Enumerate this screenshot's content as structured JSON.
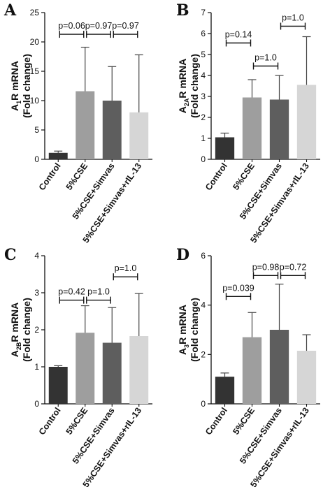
{
  "chart_data": [
    {
      "type": "bar",
      "panel": "A",
      "ylabel_main": "A",
      "ylabel_sub": "1",
      "ylabel_rest": "R mRNA",
      "ylabel_line2": "(Fold change)",
      "categories": [
        "Control",
        "5%CSE",
        "5%CSE+Simvas",
        "5%CSE+Simvas+rIL-13"
      ],
      "values": [
        1.1,
        11.6,
        10.0,
        8.0
      ],
      "errors": [
        0.3,
        7.5,
        5.8,
        9.8
      ],
      "colors": [
        "#333333",
        "#9e9e9e",
        "#5e5e5e",
        "#d6d6d6"
      ],
      "ylim": [
        0,
        25
      ],
      "yticks": [
        0,
        5,
        10,
        15,
        20,
        25
      ],
      "comparisons": [
        {
          "from": 0,
          "to": 1,
          "label": "p=0.06",
          "y": 21.3
        },
        {
          "from": 1,
          "to": 2,
          "label": "p=0.97",
          "y": 21.3
        },
        {
          "from": 2,
          "to": 3,
          "label": "p=0.97",
          "y": 21.3
        }
      ]
    },
    {
      "type": "bar",
      "panel": "B",
      "ylabel_main": "A",
      "ylabel_sub": "2A",
      "ylabel_rest": "R mRNA",
      "ylabel_line2": "(Fold change)",
      "categories": [
        "Control",
        "5%CSE",
        "5%CSE+Simvas",
        "5%CSE+Simvas+rIL-13"
      ],
      "values": [
        1.05,
        2.95,
        2.85,
        3.55
      ],
      "errors": [
        0.2,
        0.85,
        1.15,
        2.3
      ],
      "colors": [
        "#333333",
        "#9e9e9e",
        "#5e5e5e",
        "#d6d6d6"
      ],
      "ylim": [
        0,
        7
      ],
      "yticks": [
        0,
        1,
        2,
        3,
        4,
        5,
        6,
        7
      ],
      "comparisons": [
        {
          "from": 0,
          "to": 1,
          "label": "p=0.14",
          "y": 5.55
        },
        {
          "from": 1,
          "to": 2,
          "label": "p=1.0",
          "y": 4.45
        },
        {
          "from": 2,
          "to": 3,
          "label": "p=1.0",
          "y": 6.35
        }
      ]
    },
    {
      "type": "bar",
      "panel": "C",
      "ylabel_main": "A",
      "ylabel_sub": "2B",
      "ylabel_rest": "R mRNA",
      "ylabel_line2": "(Fold change)",
      "categories": [
        "Control",
        "5%CSE",
        "5%CSE+Simvas",
        "5%CSE+Simvas+rIL-13"
      ],
      "values": [
        1.0,
        1.92,
        1.65,
        1.83
      ],
      "errors": [
        0.03,
        0.73,
        0.95,
        1.15
      ],
      "colors": [
        "#333333",
        "#9e9e9e",
        "#5e5e5e",
        "#d6d6d6"
      ],
      "ylim": [
        0,
        4
      ],
      "yticks": [
        0,
        1,
        2,
        3,
        4
      ],
      "comparisons": [
        {
          "from": 0,
          "to": 1,
          "label": "p=0.42",
          "y": 2.8
        },
        {
          "from": 1,
          "to": 2,
          "label": "p=1.0",
          "y": 2.8
        },
        {
          "from": 2,
          "to": 3,
          "label": "p=1.0",
          "y": 3.43
        }
      ]
    },
    {
      "type": "bar",
      "panel": "D",
      "ylabel_main": "A",
      "ylabel_sub": "3",
      "ylabel_rest": "R mRNA",
      "ylabel_line2": "(Fold change)",
      "categories": [
        "Control",
        "5%CSE",
        "5%CSE+Simvas",
        "5%CSE+Simvas+rIL-13"
      ],
      "values": [
        1.1,
        2.7,
        3.0,
        2.15
      ],
      "errors": [
        0.15,
        1.0,
        1.85,
        0.65
      ],
      "colors": [
        "#333333",
        "#9e9e9e",
        "#5e5e5e",
        "#d6d6d6"
      ],
      "ylim": [
        0,
        6
      ],
      "yticks": [
        0,
        2,
        4,
        6
      ],
      "comparisons": [
        {
          "from": 0,
          "to": 1,
          "label": "p=0.039",
          "y": 4.35
        },
        {
          "from": 1,
          "to": 2,
          "label": "p=0.98",
          "y": 5.2
        },
        {
          "from": 2,
          "to": 3,
          "label": "p=0.72",
          "y": 5.2
        }
      ]
    }
  ]
}
